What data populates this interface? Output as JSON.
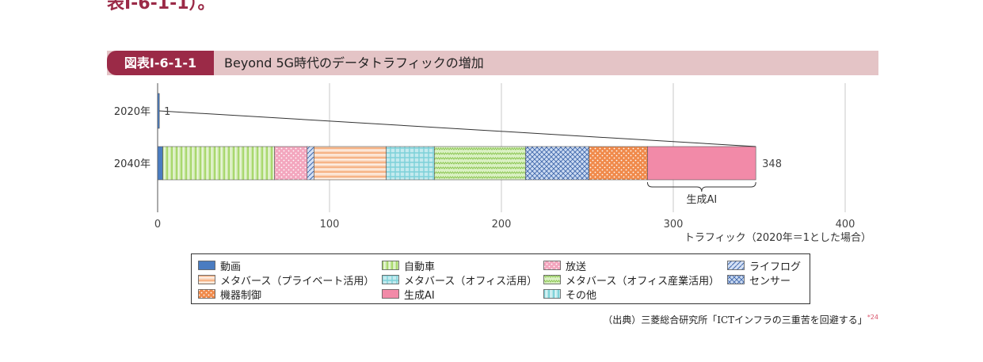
{
  "page": {
    "top_cut_text": "表Ⅰ-6-1-1）。",
    "figure_label": "図表Ⅰ-6-1-1",
    "figure_title": "Beyond 5G時代のデータトラフィックの増加",
    "source_text": "（出典）三菱総合研究所「ICTインフラの三重苦を回避する」",
    "source_ref": "*24"
  },
  "chart_data": {
    "type": "bar",
    "orientation": "horizontal",
    "stacked": true,
    "categories": [
      "2020年",
      "2040年"
    ],
    "totals": [
      1,
      348
    ],
    "xlabel": "トラフィック（2020年＝1とした場合）",
    "xlim": [
      0,
      400
    ],
    "xticks": [
      0,
      100,
      200,
      300,
      400
    ],
    "grid": true,
    "annotation": "生成AI",
    "series": [
      {
        "name": "動画",
        "values": [
          1,
          3
        ],
        "color": "#4a7cc1",
        "pattern": "solid"
      },
      {
        "name": "自動車",
        "values": [
          0,
          65
        ],
        "color": "#a9d86e",
        "pattern": "vstripe"
      },
      {
        "name": "放送",
        "values": [
          0,
          19
        ],
        "color": "#f3a6be",
        "pattern": "dots"
      },
      {
        "name": "ライフログ",
        "values": [
          0,
          4
        ],
        "color": "#a9c2ea",
        "pattern": "diag"
      },
      {
        "name": "メタバース（プライベート活用）",
        "values": [
          0,
          42
        ],
        "color": "#f6b487",
        "pattern": "hstripe"
      },
      {
        "name": "メタバース（オフィス活用）",
        "values": [
          0,
          28
        ],
        "color": "#7cd1d9",
        "pattern": "grid"
      },
      {
        "name": "メタバース（オフィス産業活用）",
        "values": [
          0,
          53
        ],
        "color": "#c2e79b",
        "pattern": "zigzag"
      },
      {
        "name": "センサー",
        "values": [
          0,
          37
        ],
        "color": "#8fb0e3",
        "pattern": "cross"
      },
      {
        "name": "機器制御",
        "values": [
          0,
          34
        ],
        "color": "#f08a4b",
        "pattern": "dots"
      },
      {
        "name": "生成AI",
        "values": [
          0,
          63
        ],
        "color": "#f28aa8",
        "pattern": "solid"
      },
      {
        "name": "その他",
        "values": [
          0,
          0
        ],
        "color": "#7fd3d9",
        "pattern": "vstripe"
      }
    ],
    "legend_placement": "bottom"
  }
}
